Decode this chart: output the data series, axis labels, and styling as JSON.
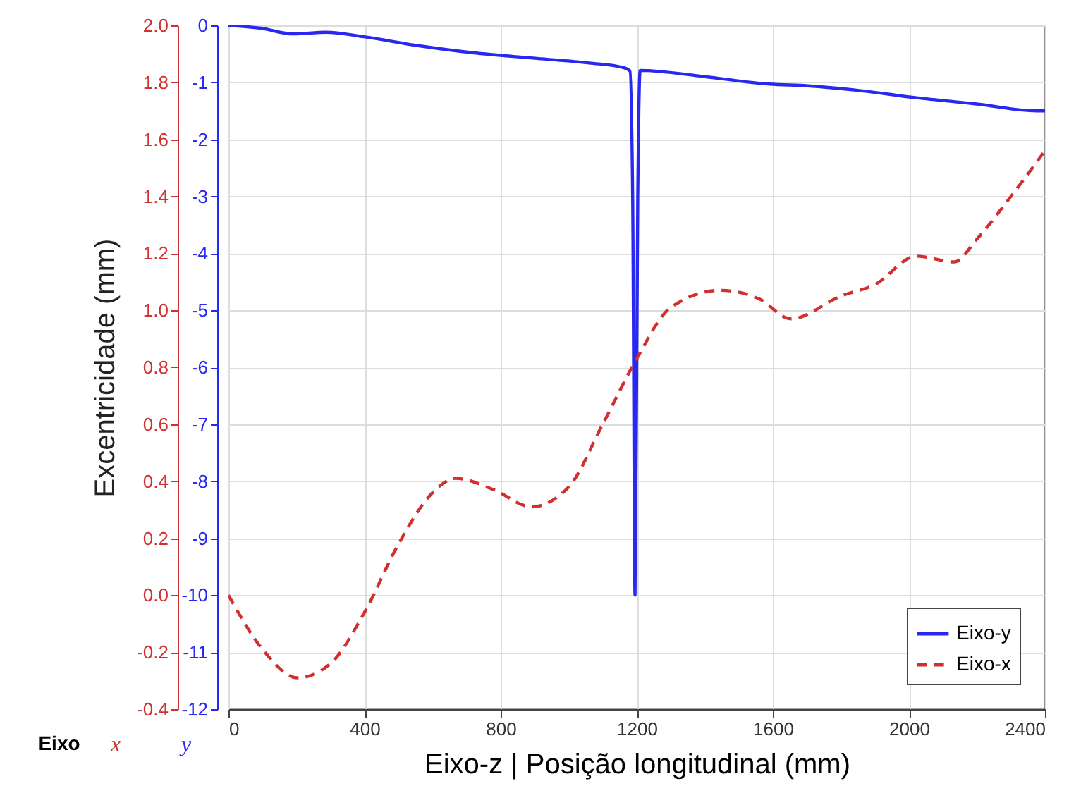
{
  "chart_data": {
    "type": "line",
    "xlabel": "Eixo-z | Posição longitudinal (mm)",
    "ylabel": "Excentricidade (mm)",
    "annotations": [
      "Eixo",
      "x",
      "y"
    ],
    "xlim": [
      0,
      2400
    ],
    "xticks": [
      0,
      400,
      800,
      1200,
      1600,
      2000,
      2400
    ],
    "ylim": [
      -0.4,
      2.0
    ],
    "yticks": [
      -0.4,
      -0.2,
      {
        "value": 0,
        "label": "0.0"
      },
      0.2,
      0.4,
      0.6,
      0.8,
      {
        "value": 1,
        "label": "1.0"
      },
      1.2,
      1.4,
      1.6,
      1.8,
      {
        "value": 2,
        "label": "2.0"
      }
    ],
    "y2lim": [
      -12,
      0
    ],
    "y2ticks": [
      -12,
      -11,
      -10,
      -9,
      -8,
      -7,
      -6,
      -5,
      -4,
      -3,
      -2,
      -1,
      0
    ],
    "grid": true,
    "legend": "bottom right",
    "series": [
      {
        "name": "Eixo-y",
        "color": "#2828f0",
        "axis": "y2",
        "line_style": "solid",
        "x": [
          0,
          95,
          190,
          286,
          398,
          550,
          717,
          907,
          1060,
          1160,
          1180,
          1188,
          1195,
          1203,
          1210,
          1400,
          1590,
          1703,
          1850,
          2022,
          2200,
          2375,
          2400
        ],
        "values": [
          0,
          -0.05,
          -0.15,
          -0.12,
          -0.2,
          -0.35,
          -0.48,
          -0.58,
          -0.66,
          -0.74,
          -0.8,
          -3.0,
          -10,
          -3.0,
          -0.79,
          -0.9,
          -1.03,
          -1.06,
          -1.14,
          -1.27,
          -1.38,
          -1.5,
          -1.5
        ]
      },
      {
        "name": "Eixo-x",
        "color": "#d03030",
        "line_style": "dashed",
        "x": [
          0,
          100,
          203,
          300,
          400,
          500,
          600,
          668,
          780,
          890,
          1000,
          1100,
          1200,
          1300,
          1446,
          1560,
          1653,
          1800,
          1900,
          2022,
          2133,
          2200,
          2300,
          2400
        ],
        "values": [
          0.0,
          -0.19,
          -0.29,
          -0.24,
          -0.06,
          0.18,
          0.36,
          0.41,
          0.37,
          0.31,
          0.38,
          0.6,
          0.83,
          1.01,
          1.07,
          1.04,
          0.97,
          1.05,
          1.09,
          1.19,
          1.17,
          1.25,
          1.4,
          1.56
        ]
      }
    ]
  }
}
